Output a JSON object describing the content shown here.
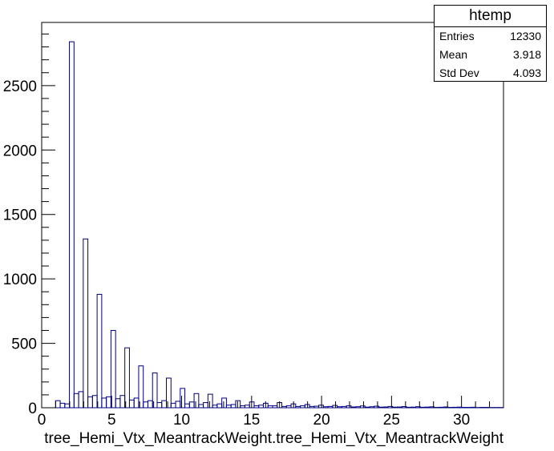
{
  "chart_data": {
    "type": "histogram",
    "title": "",
    "xlabel": "tree_Hemi_Vtx_MeantrackWeight.tree_Hemi_Vtx_MeantrackWeight",
    "ylabel": "",
    "xlim": [
      0,
      33
    ],
    "ylim": [
      0,
      2990
    ],
    "bin_width": 0.33,
    "x_ticks": [
      0,
      5,
      10,
      15,
      20,
      25,
      30
    ],
    "x_tick_labels": [
      "0",
      "5",
      "10",
      "15",
      "20",
      "25",
      "30"
    ],
    "y_ticks": [
      0,
      500,
      1000,
      1500,
      2000,
      2500
    ],
    "y_tick_labels": [
      "0",
      "500",
      "1000",
      "1500",
      "2000",
      "2500"
    ],
    "grid": false,
    "line_color": "#000080",
    "counts": [
      0,
      0,
      0,
      55,
      35,
      30,
      2840,
      110,
      125,
      1310,
      85,
      95,
      880,
      75,
      85,
      600,
      70,
      95,
      465,
      60,
      75,
      325,
      45,
      55,
      270,
      40,
      55,
      230,
      35,
      50,
      150,
      30,
      45,
      110,
      25,
      40,
      105,
      20,
      30,
      75,
      20,
      25,
      55,
      15,
      20,
      45,
      15,
      20,
      35,
      15,
      15,
      40,
      10,
      15,
      30,
      10,
      15,
      25,
      10,
      12,
      20,
      8,
      10,
      18,
      8,
      10,
      15,
      6,
      8,
      14,
      5,
      8,
      12,
      5,
      6,
      10,
      5,
      6,
      9,
      4,
      5,
      8,
      4,
      5,
      7,
      3,
      4,
      6,
      3,
      4,
      5,
      3,
      3,
      4,
      2,
      3,
      3,
      2,
      2,
      2
    ]
  },
  "stats": {
    "title": "htemp",
    "rows": [
      {
        "label": "Entries",
        "value": "12330"
      },
      {
        "label": "Mean",
        "value": "3.918"
      },
      {
        "label": "Std Dev",
        "value": "4.093"
      }
    ]
  }
}
